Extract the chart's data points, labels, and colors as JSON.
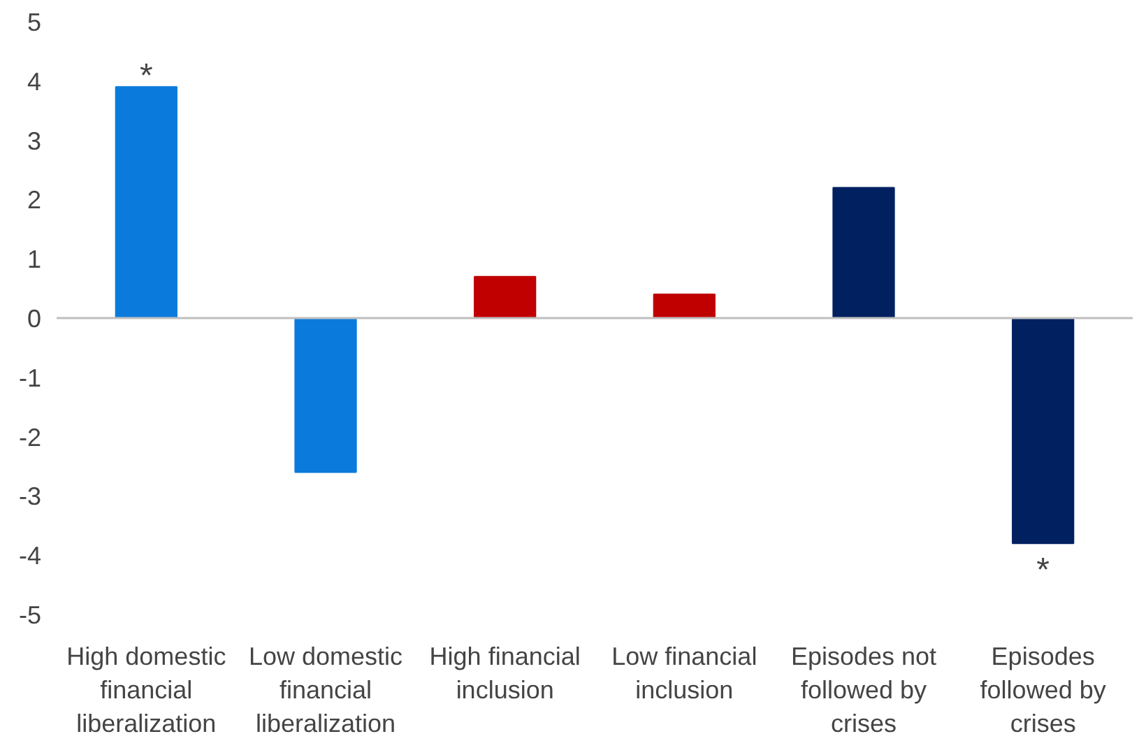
{
  "chart_data": {
    "type": "bar",
    "categories": [
      "High domestic financial liberalization",
      "Low domestic financial liberalization",
      "High financial inclusion",
      "Low financial inclusion",
      "Episodes not followed by crises",
      "Episodes followed by crises"
    ],
    "values": [
      3.9,
      -2.6,
      0.7,
      0.4,
      2.2,
      -3.8
    ],
    "colors": [
      "#0a7bdc",
      "#0a7bdc",
      "#c00000",
      "#c00000",
      "#002060",
      "#002060"
    ],
    "ylim": [
      -5,
      5
    ],
    "yticks": [
      -5,
      -4,
      -3,
      -2,
      -1,
      0,
      1,
      2,
      3,
      4,
      5
    ],
    "grid": false,
    "ref_lines": [
      {
        "axis": "y",
        "value": 0,
        "color": "#bfbfbf"
      }
    ],
    "annotations": [
      {
        "text": "*",
        "x": "High domestic financial liberalization",
        "y": 3.9
      },
      {
        "text": "*",
        "x": "Episodes followed by crises",
        "y": -3.8
      }
    ]
  }
}
